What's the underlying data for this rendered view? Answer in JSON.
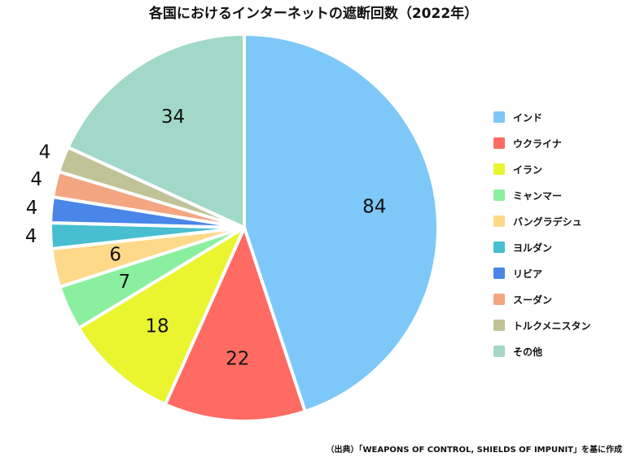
{
  "chart_data": {
    "type": "pie",
    "title": "各国におけるインターネットの遮断回数（2022年）",
    "categories": [
      "インド",
      "ウクライナ",
      "イラン",
      "ミャンマー",
      "バングラデシュ",
      "ヨルダン",
      "リビア",
      "スーダン",
      "トルクメニスタン",
      "その他"
    ],
    "values": [
      84,
      22,
      18,
      7,
      6,
      4,
      4,
      4,
      4,
      34
    ],
    "colors": [
      "#7dc8f8",
      "#ff6b63",
      "#eaf52f",
      "#8af0a0",
      "#ffd98a",
      "#47bfd0",
      "#4a86e8",
      "#f4a582",
      "#bfc397",
      "#a2d8c8"
    ],
    "legend_position": "right",
    "show_value_labels": true
  },
  "source_note": "（出典）「WEAPONS OF CONTROL, SHIELDS OF IMPUNIT」を基に作成"
}
